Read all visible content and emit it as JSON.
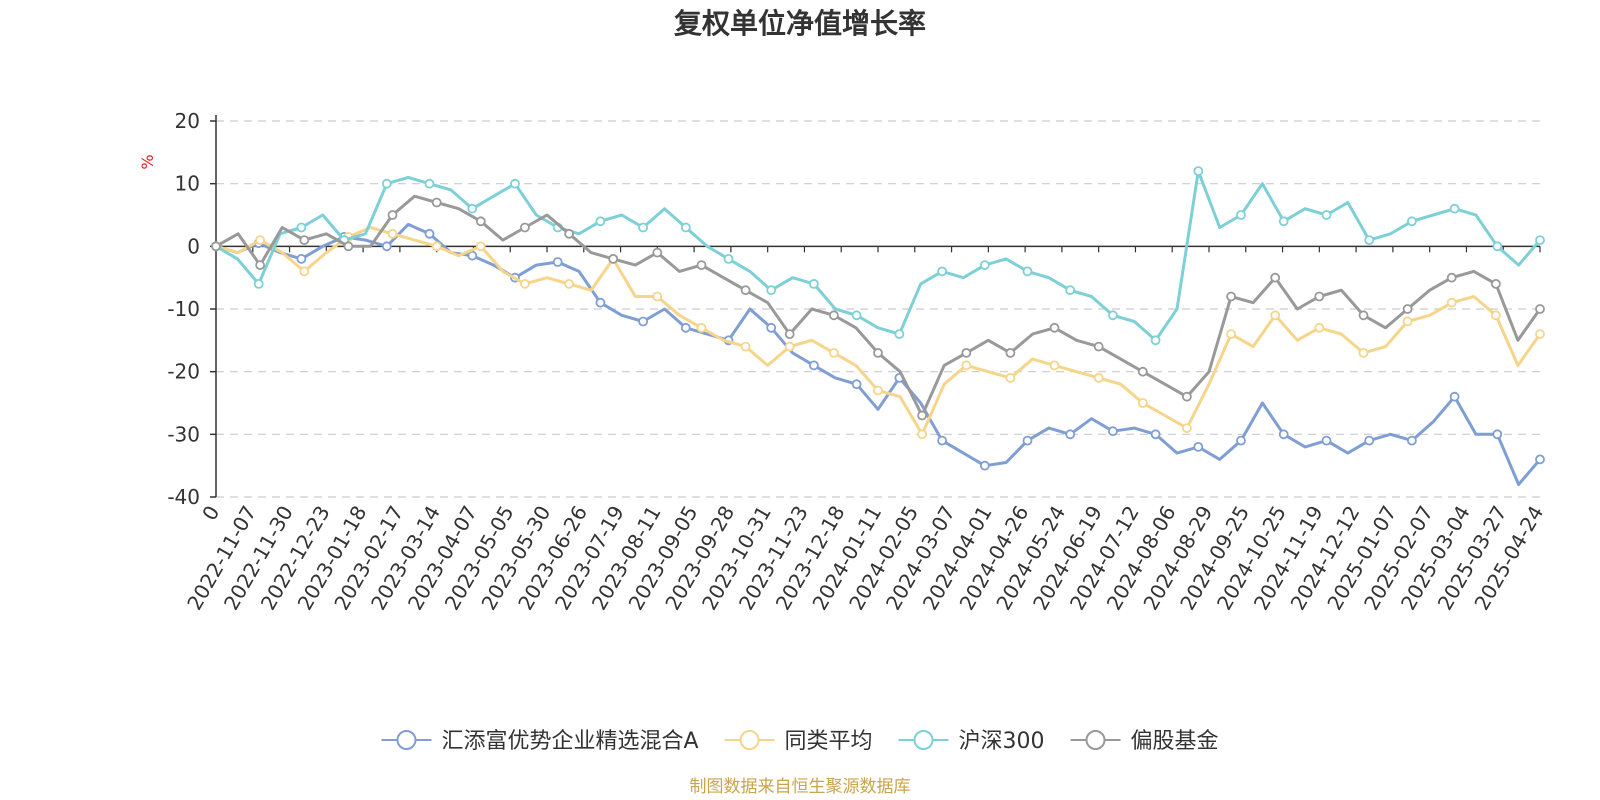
{
  "chart_data": {
    "type": "line",
    "title": "复权单位净值增长率",
    "ylabel": "%",
    "ylim": [
      -40,
      20
    ],
    "yticks": [
      20,
      10,
      0,
      -10,
      -20,
      -30,
      -40
    ],
    "x_tick_labels": [
      "0",
      "2022-11-07",
      "2022-11-30",
      "2022-12-23",
      "2023-01-18",
      "2023-02-17",
      "2023-03-14",
      "2023-04-07",
      "2023-05-05",
      "2023-05-30",
      "2023-06-26",
      "2023-07-19",
      "2023-08-11",
      "2023-09-05",
      "2023-09-28",
      "2023-10-31",
      "2023-11-23",
      "2023-12-18",
      "2024-01-11",
      "2024-02-05",
      "2024-03-07",
      "2024-04-01",
      "2024-04-26",
      "2024-05-24",
      "2024-06-19",
      "2024-07-12",
      "2024-08-06",
      "2024-08-29",
      "2024-09-25",
      "2024-10-25",
      "2024-11-19",
      "2024-12-12",
      "2025-01-07",
      "2025-02-07",
      "2025-03-04",
      "2025-03-27",
      "2025-04-24"
    ],
    "grid": true,
    "legend_position": "bottom",
    "series": [
      {
        "name": "汇添富优势企业精选混合A",
        "color": "#7f9fd4",
        "values": [
          0,
          -1,
          0.5,
          -1,
          -2,
          0,
          1.5,
          1,
          0,
          3.5,
          2,
          -1,
          -1.5,
          -3,
          -5,
          -3,
          -2.5,
          -4,
          -9,
          -11,
          -12,
          -10,
          -13,
          -14,
          -15,
          -10,
          -13,
          -17,
          -19,
          -21,
          -22,
          -26,
          -21,
          -25,
          -31,
          -33,
          -35,
          -34.5,
          -31,
          -29,
          -30,
          -27.5,
          -29.5,
          -29,
          -30,
          -33,
          -32,
          -34,
          -31,
          -25,
          -30,
          -32,
          -31,
          -33,
          -31,
          -30,
          -31,
          -28,
          -24,
          -30,
          -30,
          -38,
          -34
        ]
      },
      {
        "name": "同类平均",
        "color": "#f6d58b",
        "values": [
          0,
          -1,
          1,
          -1,
          -4,
          -1,
          1.5,
          3,
          2,
          1,
          0,
          -1.5,
          0,
          -4,
          -6,
          -5,
          -6,
          -7,
          -2,
          -8,
          -8,
          -11,
          -13,
          -15,
          -16,
          -19,
          -16,
          -15,
          -17,
          -19,
          -23,
          -24,
          -30,
          -22,
          -19,
          -20,
          -21,
          -18,
          -19,
          -20,
          -21,
          -22,
          -25,
          -27,
          -29,
          -22,
          -14,
          -16,
          -11,
          -15,
          -13,
          -14,
          -17,
          -16,
          -12,
          -11,
          -9,
          -8,
          -11,
          -19,
          -14
        ]
      },
      {
        "name": "沪深300",
        "color": "#7dd0d6",
        "values": [
          0,
          -2,
          -6,
          2,
          3,
          5,
          1,
          2,
          10,
          11,
          10,
          9,
          6,
          8,
          10,
          5,
          3,
          2,
          4,
          5,
          3,
          6,
          3,
          0,
          -2,
          -4,
          -7,
          -5,
          -6,
          -10,
          -11,
          -13,
          -14,
          -6,
          -4,
          -5,
          -3,
          -2,
          -4,
          -5,
          -7,
          -8,
          -11,
          -12,
          -15,
          -10,
          12,
          3,
          5,
          10,
          4,
          6,
          5,
          7,
          1,
          2,
          4,
          5,
          6,
          5,
          0,
          -3,
          1
        ]
      },
      {
        "name": "偏股基金",
        "color": "#999999",
        "values": [
          0,
          2,
          -3,
          3,
          1,
          2,
          0,
          0,
          5,
          8,
          7,
          6,
          4,
          1,
          3,
          5,
          2,
          -1,
          -2,
          -3,
          -1,
          -4,
          -3,
          -5,
          -7,
          -9,
          -14,
          -10,
          -11,
          -13,
          -17,
          -20,
          -27,
          -19,
          -17,
          -15,
          -17,
          -14,
          -13,
          -15,
          -16,
          -18,
          -20,
          -22,
          -24,
          -20,
          -8,
          -9,
          -5,
          -10,
          -8,
          -7,
          -11,
          -13,
          -10,
          -7,
          -5,
          -4,
          -6,
          -15,
          -10
        ]
      }
    ]
  },
  "source_note": "制图数据来自恒生聚源数据库"
}
